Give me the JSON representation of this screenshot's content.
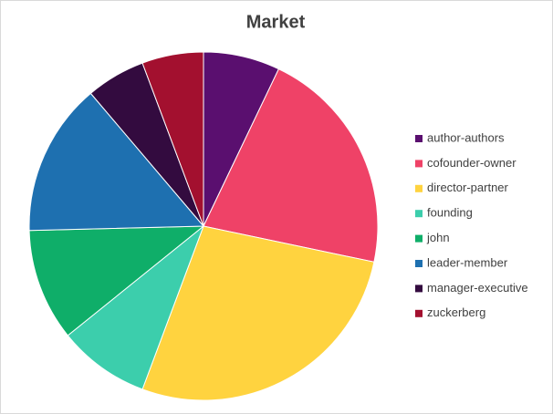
{
  "chart_data": {
    "type": "pie",
    "title": "Market",
    "categories": [
      "author-authors",
      "cofounder-owner",
      "director-partner",
      "founding",
      "john",
      "leader-member",
      "manager-executive",
      "zuckerberg"
    ],
    "values": [
      7.1,
      21.2,
      27.4,
      8.5,
      10.4,
      14.2,
      5.5,
      5.7
    ],
    "colors": [
      "#5a0f6f",
      "#ef4267",
      "#ffd33f",
      "#3cceac",
      "#0fae69",
      "#1e70b0",
      "#330b3f",
      "#a3102f"
    ],
    "legend": "right"
  }
}
